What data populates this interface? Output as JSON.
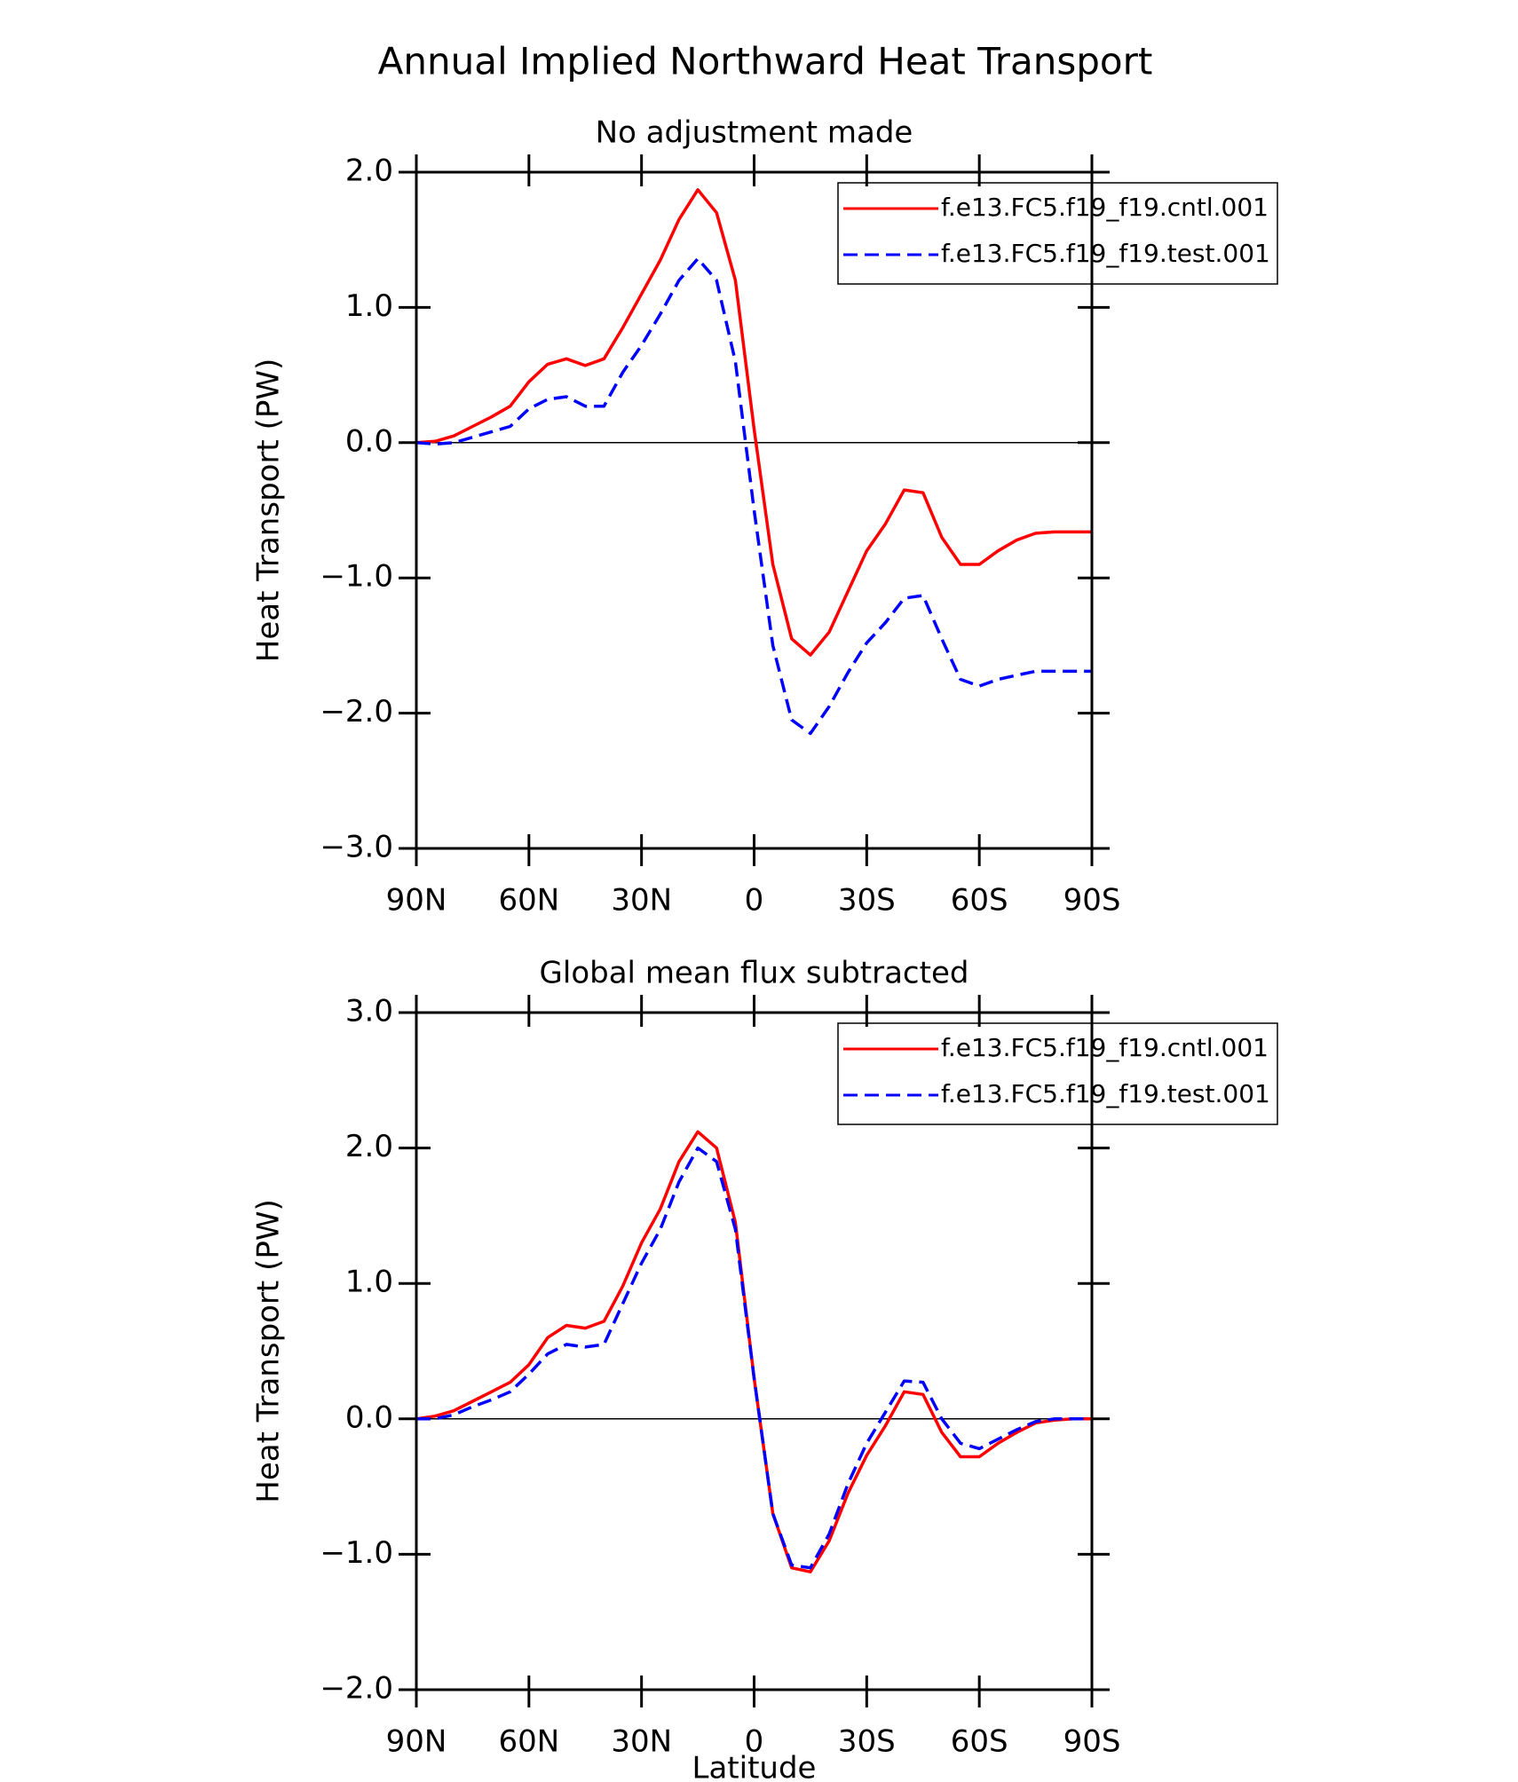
{
  "title": "Annual Implied Northward Heat Transport",
  "chart_data": [
    {
      "type": "line",
      "subtitle": "No adjustment made",
      "ylabel": "Heat Transport (PW)",
      "x": [
        90,
        85,
        80,
        75,
        70,
        65,
        60,
        55,
        50,
        45,
        40,
        35,
        30,
        25,
        20,
        15,
        10,
        5,
        0,
        -5,
        -10,
        -15,
        -20,
        -25,
        -30,
        -35,
        -40,
        -45,
        -50,
        -55,
        -60,
        -65,
        -70,
        -75,
        -80,
        -85,
        -90
      ],
      "series": [
        {
          "name": "f.e13.FC5.f19_f19.cntl.001",
          "color": "#ff0000",
          "style": "solid",
          "values": [
            0,
            0.01,
            0.05,
            0.12,
            0.19,
            0.27,
            0.45,
            0.58,
            0.62,
            0.57,
            0.62,
            0.85,
            1.1,
            1.35,
            1.65,
            1.87,
            1.7,
            1.2,
            0.1,
            -0.9,
            -1.45,
            -1.57,
            -1.4,
            -1.1,
            -0.8,
            -0.6,
            -0.35,
            -0.37,
            -0.7,
            -0.9,
            -0.9,
            -0.8,
            -0.72,
            -0.67,
            -0.66,
            -0.66,
            -0.66
          ]
        },
        {
          "name": "f.e13.FC5.f19_f19.test.001",
          "color": "#0000ff",
          "style": "dashed",
          "values": [
            0,
            -0.01,
            0,
            0.04,
            0.08,
            0.12,
            0.25,
            0.32,
            0.34,
            0.27,
            0.27,
            0.52,
            0.72,
            0.95,
            1.2,
            1.36,
            1.2,
            0.6,
            -0.5,
            -1.5,
            -2.05,
            -2.15,
            -1.95,
            -1.7,
            -1.48,
            -1.33,
            -1.15,
            -1.13,
            -1.45,
            -1.75,
            -1.8,
            -1.75,
            -1.72,
            -1.69,
            -1.69,
            -1.69,
            -1.69
          ]
        }
      ],
      "xlim": [
        90,
        -90
      ],
      "xticks": [
        {
          "value": 90,
          "label": "90N"
        },
        {
          "value": 60,
          "label": "60N"
        },
        {
          "value": 30,
          "label": "30N"
        },
        0,
        {
          "value": -30,
          "label": "30S"
        },
        {
          "value": -60,
          "label": "60S"
        },
        {
          "value": -90,
          "label": "90S"
        }
      ],
      "ylim": [
        -3,
        2
      ],
      "yticks": [
        {
          "value": 2,
          "label": "2.0"
        },
        {
          "value": 1,
          "label": "1.0"
        },
        {
          "value": 0,
          "label": "0.0"
        },
        {
          "value": -1,
          "label": "−1.0"
        },
        {
          "value": -2,
          "label": "−2.0"
        },
        {
          "value": -3,
          "label": "−3.0"
        }
      ],
      "reference_line": 0,
      "legend": "upper right"
    },
    {
      "type": "line",
      "subtitle": "Global mean flux subtracted",
      "ylabel": "Heat Transport (PW)",
      "xlabel": "Latitude",
      "x": [
        90,
        85,
        80,
        75,
        70,
        65,
        60,
        55,
        50,
        45,
        40,
        35,
        30,
        25,
        20,
        15,
        10,
        5,
        0,
        -5,
        -10,
        -15,
        -20,
        -25,
        -30,
        -35,
        -40,
        -45,
        -50,
        -55,
        -60,
        -65,
        -70,
        -75,
        -80,
        -85,
        -90
      ],
      "series": [
        {
          "name": "f.e13.FC5.f19_f19.cntl.001",
          "color": "#ff0000",
          "style": "solid",
          "values": [
            0,
            0.02,
            0.06,
            0.13,
            0.2,
            0.27,
            0.4,
            0.6,
            0.69,
            0.67,
            0.72,
            0.98,
            1.3,
            1.55,
            1.9,
            2.12,
            2.0,
            1.45,
            0.3,
            -0.7,
            -1.1,
            -1.13,
            -0.9,
            -0.55,
            -0.27,
            -0.05,
            0.2,
            0.18,
            -0.1,
            -0.28,
            -0.28,
            -0.18,
            -0.1,
            -0.03,
            -0.01,
            0,
            0
          ]
        },
        {
          "name": "f.e13.FC5.f19_f19.test.001",
          "color": "#0000ff",
          "style": "dashed",
          "values": [
            0,
            0,
            0.03,
            0.09,
            0.14,
            0.2,
            0.33,
            0.48,
            0.55,
            0.53,
            0.55,
            0.85,
            1.15,
            1.4,
            1.75,
            2.0,
            1.9,
            1.4,
            0.3,
            -0.7,
            -1.08,
            -1.1,
            -0.85,
            -0.48,
            -0.18,
            0.05,
            0.28,
            0.27,
            0,
            -0.18,
            -0.22,
            -0.15,
            -0.08,
            -0.02,
            0,
            0,
            0
          ]
        }
      ],
      "xlim": [
        90,
        -90
      ],
      "xticks": [
        {
          "value": 90,
          "label": "90N"
        },
        {
          "value": 60,
          "label": "60N"
        },
        {
          "value": 30,
          "label": "30N"
        },
        0,
        {
          "value": -30,
          "label": "30S"
        },
        {
          "value": -60,
          "label": "60S"
        },
        {
          "value": -90,
          "label": "90S"
        }
      ],
      "ylim": [
        -2,
        3
      ],
      "yticks": [
        {
          "value": 3,
          "label": "3.0"
        },
        {
          "value": 2,
          "label": "2.0"
        },
        {
          "value": 1,
          "label": "1.0"
        },
        {
          "value": 0,
          "label": "0.0"
        },
        {
          "value": -1,
          "label": "−1.0"
        },
        {
          "value": -2,
          "label": "−2.0"
        }
      ],
      "reference_line": 0,
      "legend": "upper right"
    }
  ]
}
